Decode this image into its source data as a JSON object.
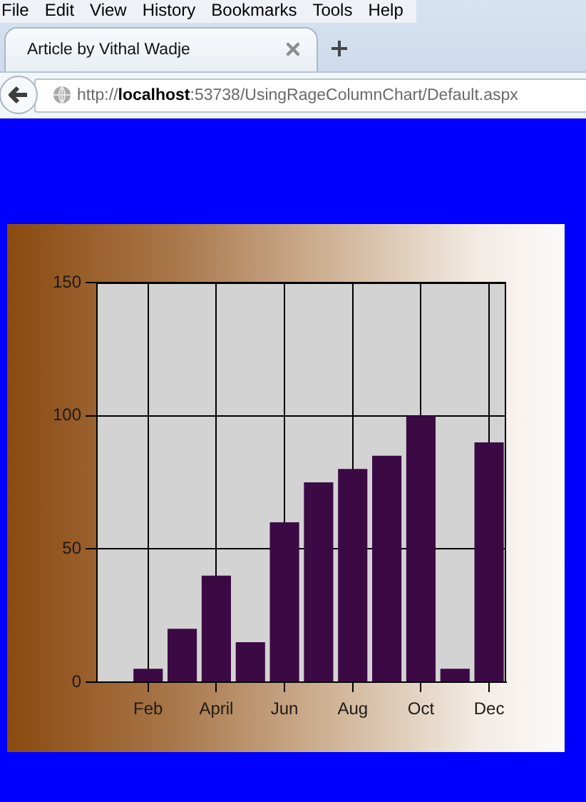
{
  "chart_data": {
    "type": "bar",
    "categories": [
      null,
      "Feb",
      null,
      "April",
      null,
      "Jun",
      null,
      "Aug",
      null,
      "Oct",
      null,
      "Dec"
    ],
    "values": [
      null,
      5,
      20,
      40,
      15,
      60,
      75,
      80,
      85,
      100,
      5,
      90
    ],
    "color": "#3b0a44",
    "ylim": [
      0,
      150
    ],
    "yticks": [
      0,
      50,
      100,
      150
    ],
    "grid": true,
    "annotations": [
      "File",
      "Edit",
      "View",
      "History",
      "Bookmarks",
      "Tools",
      "Help",
      "Article by Vithal Wadje",
      "http://localhost:53738/UsingRageColumnChart/Default.aspx"
    ]
  }
}
